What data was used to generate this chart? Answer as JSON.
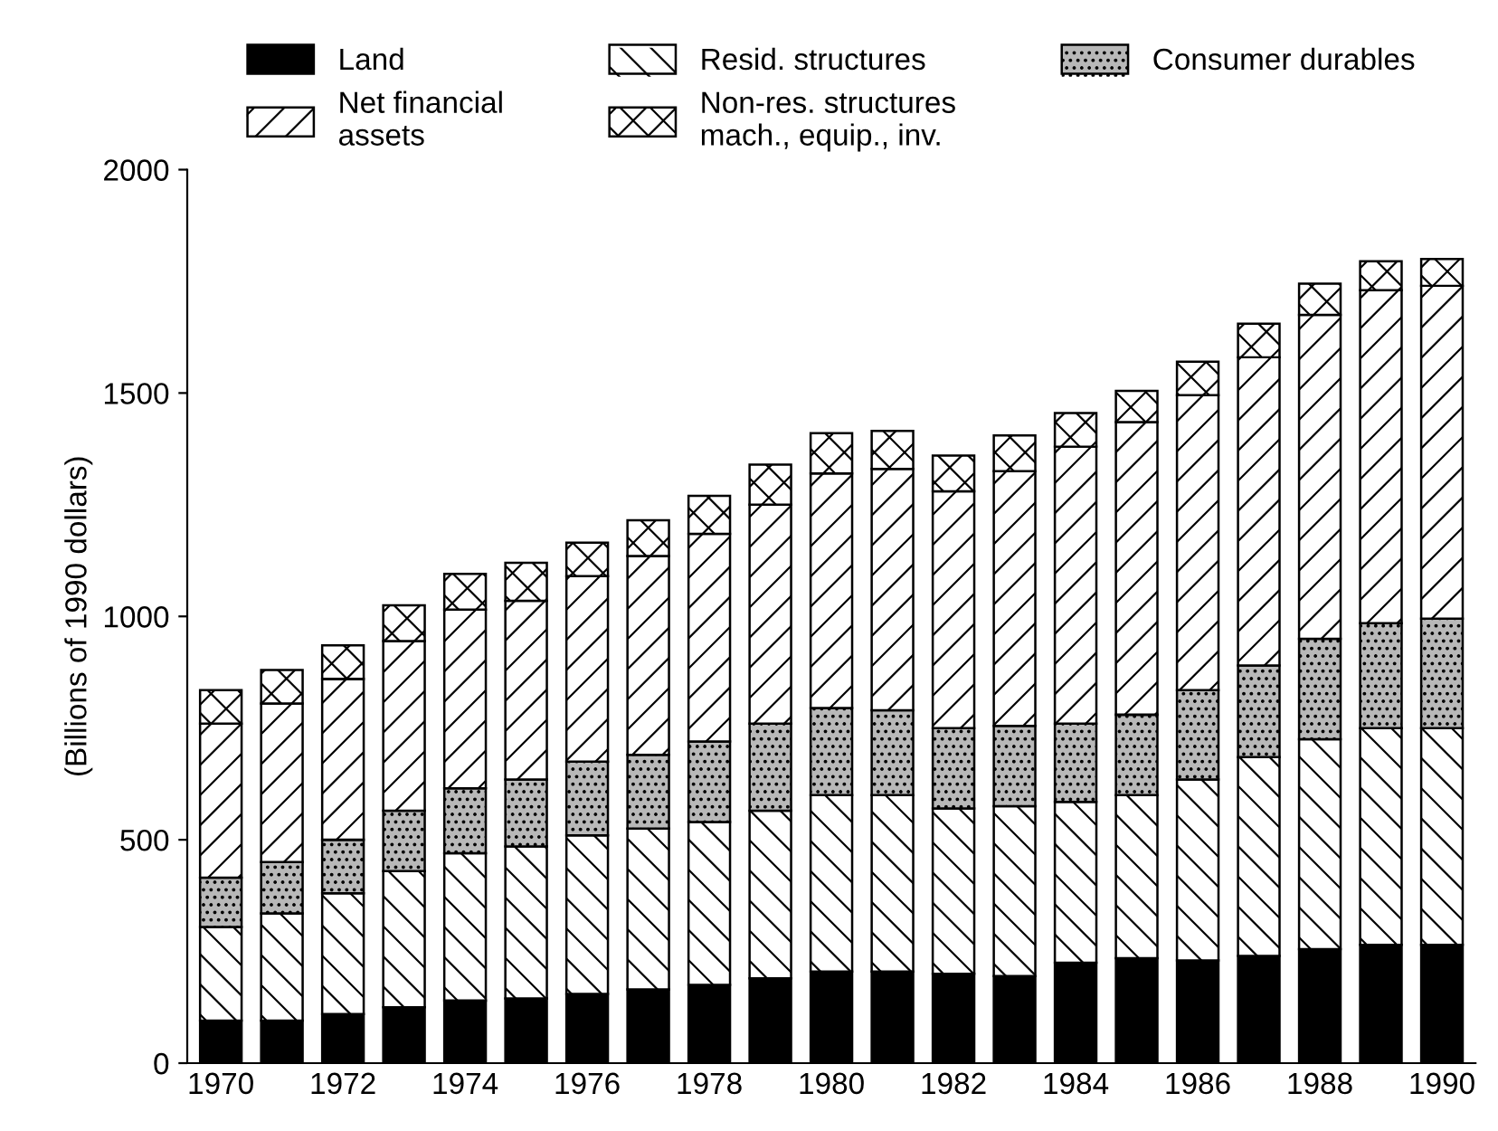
{
  "chart_data": {
    "type": "bar",
    "stacked": true,
    "ylabel": "(Billions of 1990 dollars)",
    "categories": [
      "1970",
      null,
      "1972",
      null,
      "1974",
      null,
      "1976",
      null,
      "1978",
      null,
      "1980",
      null,
      "1982",
      null,
      "1984",
      null,
      "1986",
      null,
      "1988",
      null,
      "1990"
    ],
    "series": [
      {
        "name": "Land",
        "color": "#000000",
        "values": [
          95,
          95,
          110,
          125,
          140,
          145,
          155,
          165,
          175,
          190,
          205,
          205,
          200,
          195,
          225,
          235,
          230,
          240,
          255,
          265,
          265
        ]
      },
      {
        "name": "Resid. structures",
        "color": "#ffffff",
        "values": [
          210,
          240,
          270,
          305,
          330,
          340,
          355,
          360,
          365,
          375,
          395,
          395,
          370,
          380,
          360,
          365,
          405,
          445,
          470,
          485,
          485
        ]
      },
      {
        "name": "Consumer durables",
        "color": "#b8b8b8",
        "values": [
          110,
          115,
          120,
          135,
          145,
          150,
          165,
          165,
          180,
          195,
          195,
          190,
          180,
          180,
          175,
          180,
          200,
          205,
          225,
          235,
          245
        ]
      },
      {
        "name": "Net financial\nassets",
        "color": "#ffffff",
        "values": [
          345,
          355,
          360,
          380,
          400,
          400,
          415,
          445,
          465,
          490,
          525,
          540,
          530,
          570,
          620,
          655,
          660,
          690,
          725,
          745,
          745
        ]
      },
      {
        "name": "Non-res. structures\nmach., equip., inv.",
        "color": "#ffffff",
        "values": [
          75,
          75,
          75,
          80,
          80,
          85,
          75,
          80,
          85,
          90,
          90,
          85,
          80,
          80,
          75,
          70,
          75,
          75,
          70,
          65,
          60
        ]
      }
    ],
    "ylim": [
      0,
      2000
    ],
    "yticks": [
      0,
      500,
      1000,
      1500,
      2000
    ],
    "grid": false,
    "legend": "top"
  }
}
